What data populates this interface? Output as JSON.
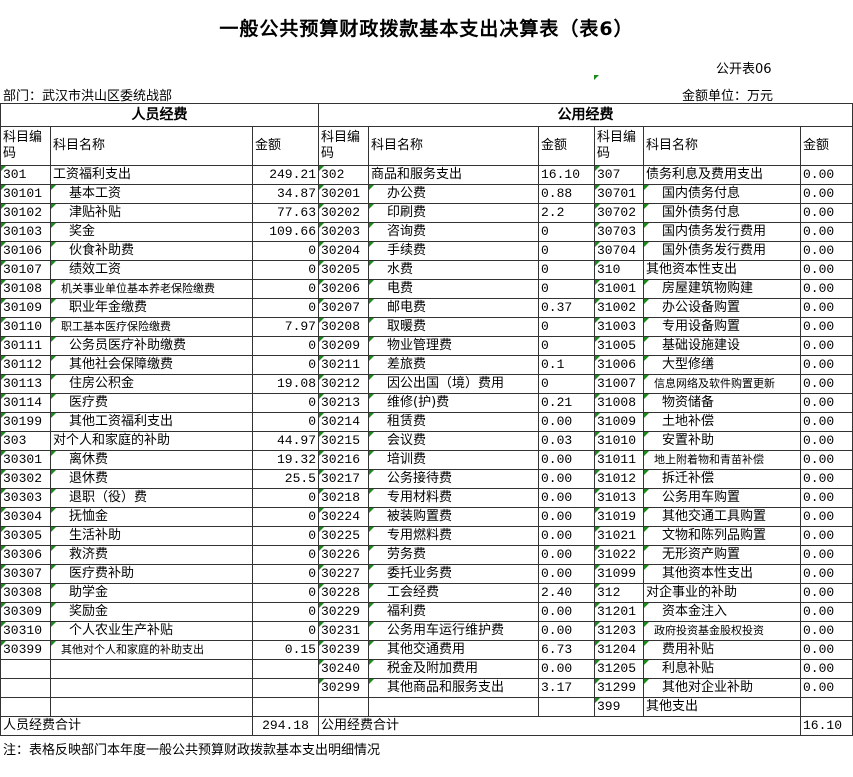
{
  "title": "一般公共预算财政拨款基本支出决算表（表6）",
  "table_no": "公开表06",
  "department": "部门：武汉市洪山区委统战部",
  "unit": "金额单位：万元",
  "sections": {
    "personnel": "人员经费",
    "public": "公用经费"
  },
  "col_headers": {
    "code": "科目编码",
    "name": "科目名称",
    "amount": "金额"
  },
  "personnel_rows": [
    {
      "code": "301",
      "name": "工资福利支出",
      "amount": "249.21"
    },
    {
      "code": "30101",
      "name": "基本工资",
      "amount": "34.87",
      "sub": true
    },
    {
      "code": "30102",
      "name": "津贴补贴",
      "amount": "77.63",
      "sub": true
    },
    {
      "code": "30103",
      "name": "奖金",
      "amount": "109.66",
      "sub": true
    },
    {
      "code": "30106",
      "name": "伙食补助费",
      "amount": "0",
      "sub": true
    },
    {
      "code": "30107",
      "name": "绩效工资",
      "amount": "0",
      "sub": true
    },
    {
      "code": "30108",
      "name": "机关事业单位基本养老保险缴费",
      "amount": "0",
      "sub": true
    },
    {
      "code": "30109",
      "name": "职业年金缴费",
      "amount": "0",
      "sub": true
    },
    {
      "code": "30110",
      "name": "职工基本医疗保险缴费",
      "amount": "7.97",
      "sub": true
    },
    {
      "code": "30111",
      "name": "公务员医疗补助缴费",
      "amount": "0",
      "sub": true
    },
    {
      "code": "30112",
      "name": "其他社会保障缴费",
      "amount": "0",
      "sub": true
    },
    {
      "code": "30113",
      "name": "住房公积金",
      "amount": "19.08",
      "sub": true
    },
    {
      "code": "30114",
      "name": "医疗费",
      "amount": "0",
      "sub": true
    },
    {
      "code": "30199",
      "name": "其他工资福利支出",
      "amount": "0",
      "sub": true
    },
    {
      "code": "303",
      "name": "对个人和家庭的补助",
      "amount": "44.97"
    },
    {
      "code": "30301",
      "name": "离休费",
      "amount": "19.32",
      "sub": true
    },
    {
      "code": "30302",
      "name": "退休费",
      "amount": "25.5",
      "sub": true
    },
    {
      "code": "30303",
      "name": "退职（役）费",
      "amount": "0",
      "sub": true
    },
    {
      "code": "30304",
      "name": "抚恤金",
      "amount": "0",
      "sub": true
    },
    {
      "code": "30305",
      "name": "生活补助",
      "amount": "0",
      "sub": true
    },
    {
      "code": "30306",
      "name": "救济费",
      "amount": "0",
      "sub": true
    },
    {
      "code": "30307",
      "name": "医疗费补助",
      "amount": "0",
      "sub": true
    },
    {
      "code": "30308",
      "name": "助学金",
      "amount": "0",
      "sub": true
    },
    {
      "code": "30309",
      "name": "奖励金",
      "amount": "0",
      "sub": true
    },
    {
      "code": "30310",
      "name": "个人农业生产补贴",
      "amount": "0",
      "sub": true
    },
    {
      "code": "30399",
      "name": "其他对个人和家庭的补助支出",
      "amount": "0.15",
      "sub": true
    }
  ],
  "public_rows_a": [
    {
      "code": "302",
      "name": "商品和服务支出",
      "amount": "16.10"
    },
    {
      "code": "30201",
      "name": "办公费",
      "amount": "0.88",
      "sub": true
    },
    {
      "code": "30202",
      "name": "印刷费",
      "amount": "2.2",
      "sub": true
    },
    {
      "code": "30203",
      "name": "咨询费",
      "amount": "0",
      "sub": true
    },
    {
      "code": "30204",
      "name": "手续费",
      "amount": "0",
      "sub": true
    },
    {
      "code": "30205",
      "name": "水费",
      "amount": "0",
      "sub": true
    },
    {
      "code": "30206",
      "name": "电费",
      "amount": "0",
      "sub": true
    },
    {
      "code": "30207",
      "name": "邮电费",
      "amount": "0.37",
      "sub": true
    },
    {
      "code": "30208",
      "name": "取暖费",
      "amount": "0",
      "sub": true
    },
    {
      "code": "30209",
      "name": "物业管理费",
      "amount": "0",
      "sub": true
    },
    {
      "code": "30211",
      "name": "差旅费",
      "amount": "0.1",
      "sub": true
    },
    {
      "code": "30212",
      "name": "因公出国（境）费用",
      "amount": "0",
      "sub": true
    },
    {
      "code": "30213",
      "name": "维修(护)费",
      "amount": "0.21",
      "sub": true
    },
    {
      "code": "30214",
      "name": "租赁费",
      "amount": "0.00",
      "sub": true
    },
    {
      "code": "30215",
      "name": "会议费",
      "amount": "0.03",
      "sub": true
    },
    {
      "code": "30216",
      "name": "培训费",
      "amount": "0.00",
      "sub": true
    },
    {
      "code": "30217",
      "name": "公务接待费",
      "amount": "0.00",
      "sub": true
    },
    {
      "code": "30218",
      "name": "专用材料费",
      "amount": "0.00",
      "sub": true
    },
    {
      "code": "30224",
      "name": "被装购置费",
      "amount": "0.00",
      "sub": true
    },
    {
      "code": "30225",
      "name": "专用燃料费",
      "amount": "0.00",
      "sub": true
    },
    {
      "code": "30226",
      "name": "劳务费",
      "amount": "0.00",
      "sub": true
    },
    {
      "code": "30227",
      "name": "委托业务费",
      "amount": "0.00",
      "sub": true
    },
    {
      "code": "30228",
      "name": "工会经费",
      "amount": "2.40",
      "sub": true
    },
    {
      "code": "30229",
      "name": "福利费",
      "amount": "0.00",
      "sub": true
    },
    {
      "code": "30231",
      "name": "公务用车运行维护费",
      "amount": "0.00",
      "sub": true
    },
    {
      "code": "30239",
      "name": "其他交通费用",
      "amount": "6.73",
      "sub": true
    },
    {
      "code": "30240",
      "name": "税金及附加费用",
      "amount": "0.00",
      "sub": true
    },
    {
      "code": "30299",
      "name": "其他商品和服务支出",
      "amount": "3.17",
      "sub": true
    }
  ],
  "public_rows_b": [
    {
      "code": "307",
      "name": "债务利息及费用支出",
      "amount": "0.00"
    },
    {
      "code": "30701",
      "name": "国内债务付息",
      "amount": "0.00",
      "sub": true
    },
    {
      "code": "30702",
      "name": "国外债务付息",
      "amount": "0.00",
      "sub": true
    },
    {
      "code": "30703",
      "name": "国内债务发行费用",
      "amount": "0.00",
      "sub": true
    },
    {
      "code": "30704",
      "name": "国外债务发行费用",
      "amount": "0.00",
      "sub": true
    },
    {
      "code": "310",
      "name": "其他资本性支出",
      "amount": "0.00"
    },
    {
      "code": "31001",
      "name": "房屋建筑物购建",
      "amount": "0.00",
      "sub": true
    },
    {
      "code": "31002",
      "name": "办公设备购置",
      "amount": "0.00",
      "sub": true
    },
    {
      "code": "31003",
      "name": "专用设备购置",
      "amount": "0.00",
      "sub": true
    },
    {
      "code": "31005",
      "name": "基础设施建设",
      "amount": "0.00",
      "sub": true
    },
    {
      "code": "31006",
      "name": "大型修缮",
      "amount": "0.00",
      "sub": true
    },
    {
      "code": "31007",
      "name": "信息网络及软件购置更新",
      "amount": "0.00",
      "sub": true
    },
    {
      "code": "31008",
      "name": "物资储备",
      "amount": "0.00",
      "sub": true
    },
    {
      "code": "31009",
      "name": "土地补偿",
      "amount": "0.00",
      "sub": true
    },
    {
      "code": "31010",
      "name": "安置补助",
      "amount": "0.00",
      "sub": true
    },
    {
      "code": "31011",
      "name": "地上附着物和青苗补偿",
      "amount": "0.00",
      "sub": true
    },
    {
      "code": "31012",
      "name": "拆迁补偿",
      "amount": "0.00",
      "sub": true
    },
    {
      "code": "31013",
      "name": "公务用车购置",
      "amount": "0.00",
      "sub": true
    },
    {
      "code": "31019",
      "name": "其他交通工具购置",
      "amount": "0.00",
      "sub": true
    },
    {
      "code": "31021",
      "name": "文物和陈列品购置",
      "amount": "0.00",
      "sub": true
    },
    {
      "code": "31022",
      "name": "无形资产购置",
      "amount": "0.00",
      "sub": true
    },
    {
      "code": "31099",
      "name": "其他资本性支出",
      "amount": "0.00",
      "sub": true
    },
    {
      "code": "312",
      "name": "对企事业的补助",
      "amount": "0.00"
    },
    {
      "code": "31201",
      "name": "资本金注入",
      "amount": "0.00",
      "sub": true
    },
    {
      "code": "31203",
      "name": "政府投资基金股权投资",
      "amount": "0.00",
      "sub": true
    },
    {
      "code": "31204",
      "name": "费用补贴",
      "amount": "0.00",
      "sub": true
    },
    {
      "code": "31205",
      "name": "利息补贴",
      "amount": "0.00",
      "sub": true
    },
    {
      "code": "31299",
      "name": "其他对企业补助",
      "amount": "0.00",
      "sub": true
    },
    {
      "code": "399",
      "name": "其他支出",
      "amount": ""
    }
  ],
  "totals": {
    "personnel_label": "人员经费合计",
    "personnel_amount": "294.18",
    "public_label": "公用经费合计",
    "public_amount": "16.10"
  },
  "note": "注：表格反映部门本年度一般公共预算财政拨款基本支出明细情况"
}
